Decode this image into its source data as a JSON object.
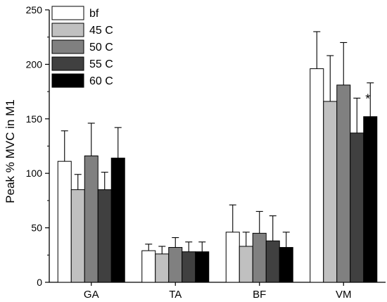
{
  "chart_data": {
    "type": "bar",
    "title": "",
    "xlabel": "",
    "ylabel": "Peak % MVC in M1",
    "ylim": [
      0,
      250
    ],
    "yticks": [
      0,
      50,
      100,
      150,
      200,
      250
    ],
    "categories": [
      "GA",
      "TA",
      "BF",
      "VM"
    ],
    "legend_position": "top-left",
    "grid": false,
    "series": [
      {
        "name": "bf",
        "color": "#ffffff",
        "values": [
          111,
          29,
          46,
          196
        ],
        "errors": [
          28,
          6,
          25,
          34
        ]
      },
      {
        "name": "45 C",
        "color": "#c0c0c0",
        "values": [
          85,
          26,
          33,
          166
        ],
        "errors": [
          14,
          7,
          13,
          42
        ]
      },
      {
        "name": "50 C",
        "color": "#808080",
        "values": [
          116,
          32,
          45,
          181
        ],
        "errors": [
          30,
          9,
          20,
          39
        ]
      },
      {
        "name": "55 C",
        "color": "#404040",
        "values": [
          85,
          28,
          38,
          137
        ],
        "errors": [
          16,
          9,
          23,
          32
        ]
      },
      {
        "name": "60 C",
        "color": "#000000",
        "values": [
          114,
          28,
          32,
          152
        ],
        "errors": [
          28,
          9,
          14,
          31
        ]
      }
    ],
    "annotations": [
      {
        "text": "*",
        "category": "VM",
        "series": "55 C",
        "y": 172
      }
    ]
  }
}
